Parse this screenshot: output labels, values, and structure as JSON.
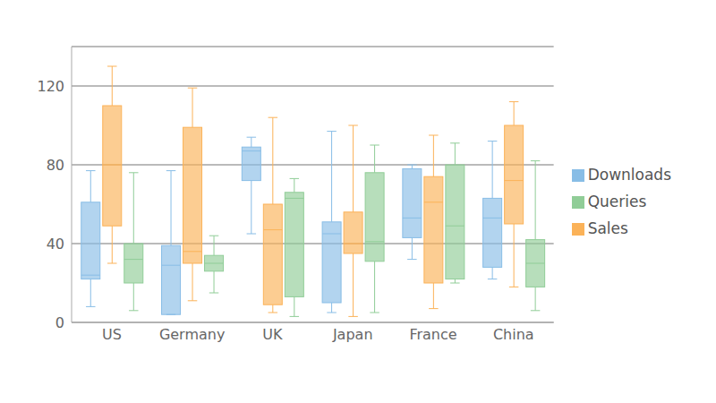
{
  "chart_data": {
    "type": "box",
    "categories": [
      "US",
      "Germany",
      "UK",
      "Japan",
      "France",
      "China"
    ],
    "series": [
      {
        "name": "Downloads",
        "color": "#88bde6",
        "values": [
          {
            "min": 8,
            "q1": 22,
            "median": 24,
            "q3": 61,
            "max": 77
          },
          {
            "min": 4,
            "q1": 4,
            "median": 29,
            "q3": 39,
            "max": 77
          },
          {
            "min": 45,
            "q1": 72,
            "median": 87,
            "q3": 89,
            "max": 94
          },
          {
            "min": 5,
            "q1": 10,
            "median": 45,
            "q3": 51,
            "max": 97
          },
          {
            "min": 32,
            "q1": 43,
            "median": 53,
            "q3": 78,
            "max": 80
          },
          {
            "min": 22,
            "q1": 28,
            "median": 53,
            "q3": 63,
            "max": 92
          }
        ]
      },
      {
        "name": "Sales",
        "color": "#fbb258",
        "values": [
          {
            "min": 30,
            "q1": 49,
            "median": 80,
            "q3": 110,
            "max": 130
          },
          {
            "min": 11,
            "q1": 30,
            "median": 36,
            "q3": 99,
            "max": 119
          },
          {
            "min": 5,
            "q1": 9,
            "median": 47,
            "q3": 60,
            "max": 104
          },
          {
            "min": 3,
            "q1": 35,
            "median": 40,
            "q3": 56,
            "max": 100
          },
          {
            "min": 7,
            "q1": 20,
            "median": 61,
            "q3": 74,
            "max": 95
          },
          {
            "min": 18,
            "q1": 50,
            "median": 72,
            "q3": 100,
            "max": 112
          }
        ]
      },
      {
        "name": "Queries",
        "color": "#90cd97",
        "values": [
          {
            "min": 6,
            "q1": 20,
            "median": 32,
            "q3": 40,
            "max": 76
          },
          {
            "min": 15,
            "q1": 26,
            "median": 30,
            "q3": 34,
            "max": 44
          },
          {
            "min": 3,
            "q1": 13,
            "median": 63,
            "q3": 66,
            "max": 73
          },
          {
            "min": 5,
            "q1": 31,
            "median": 41,
            "q3": 76,
            "max": 90
          },
          {
            "min": 20,
            "q1": 22,
            "median": 49,
            "q3": 80,
            "max": 91
          },
          {
            "min": 6,
            "q1": 18,
            "median": 30,
            "q3": 42,
            "max": 82
          }
        ]
      }
    ],
    "ylim": [
      0,
      140
    ],
    "yticks": [
      0,
      40,
      80,
      120
    ],
    "grid": true,
    "legend": "right"
  }
}
